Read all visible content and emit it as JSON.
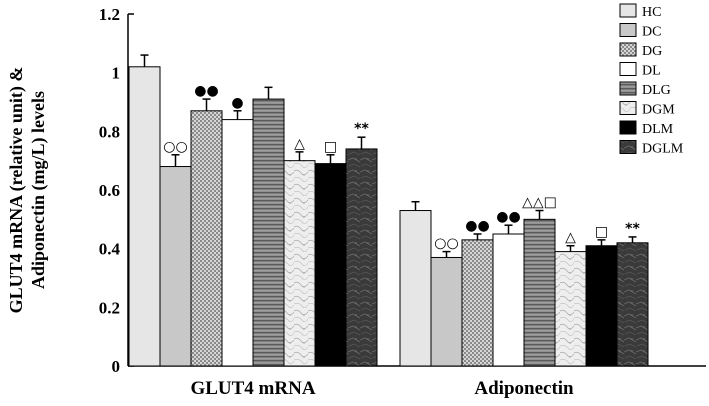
{
  "chart_data": {
    "type": "bar",
    "title": "",
    "xlabel": "",
    "ylabel_lines": [
      "GLUT4 mRNA (relative unit) &",
      "Adiponectin (mg/L) levels"
    ],
    "ylim": [
      0,
      1.2
    ],
    "yticks": [
      "0",
      "0.2",
      "0.4",
      "0.6",
      "0.8",
      "1",
      "1.2"
    ],
    "grid": false,
    "legend_position": "top-right",
    "categories": [
      "GLUT4 mRNA",
      "Adiponectin"
    ],
    "series": [
      {
        "name": "HC",
        "values": [
          1.02,
          0.53
        ],
        "errors": [
          0.04,
          0.03
        ],
        "marks": [
          "",
          ""
        ],
        "fill": "#e6e6e6",
        "pattern": "none"
      },
      {
        "name": "DC",
        "values": [
          0.68,
          0.37
        ],
        "errors": [
          0.04,
          0.02
        ],
        "marks": [
          "○○",
          "○○"
        ],
        "fill": "#c8c8c8",
        "pattern": "none"
      },
      {
        "name": "DG",
        "values": [
          0.87,
          0.43
        ],
        "errors": [
          0.04,
          0.02
        ],
        "marks": [
          "●●",
          "●●"
        ],
        "fill": "#c4c4c4",
        "pattern": "check"
      },
      {
        "name": "DL",
        "values": [
          0.84,
          0.45
        ],
        "errors": [
          0.03,
          0.03
        ],
        "marks": [
          "●",
          "●●"
        ],
        "fill": "#ffffff",
        "pattern": "none"
      },
      {
        "name": "DLG",
        "values": [
          0.91,
          0.5
        ],
        "errors": [
          0.04,
          0.03
        ],
        "marks": [
          "",
          "△△□"
        ],
        "fill": "#7d7d7d",
        "pattern": "hstripe"
      },
      {
        "name": "DGM",
        "values": [
          0.7,
          0.39
        ],
        "errors": [
          0.03,
          0.02
        ],
        "marks": [
          "△",
          "△"
        ],
        "fill": "#dcdcdc",
        "pattern": "marble"
      },
      {
        "name": "DLM",
        "values": [
          0.69,
          0.41
        ],
        "errors": [
          0.03,
          0.02
        ],
        "marks": [
          "□",
          "□"
        ],
        "fill": "#000000",
        "pattern": "none"
      },
      {
        "name": "DGLM",
        "values": [
          0.74,
          0.42
        ],
        "errors": [
          0.04,
          0.02
        ],
        "marks": [
          "**",
          "**"
        ],
        "fill": "#3c3c3c",
        "pattern": "stone"
      }
    ]
  }
}
